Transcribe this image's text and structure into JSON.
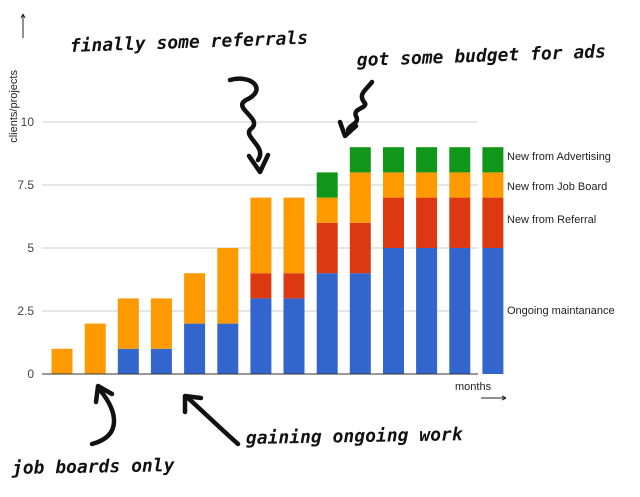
{
  "chart_data": {
    "type": "bar",
    "stacked": true,
    "categories": [
      "",
      "",
      "",
      "",
      "",
      "",
      "",
      "",
      "",
      "",
      "",
      "",
      "",
      ""
    ],
    "series": [
      {
        "name": "Ongoing maintanance",
        "color": "#3366cc",
        "values": [
          0,
          0,
          1,
          1,
          2,
          2,
          3,
          3,
          4,
          4,
          5,
          5,
          5,
          5
        ]
      },
      {
        "name": "New from Referral",
        "color": "#dc3912",
        "values": [
          0,
          0,
          0,
          0,
          0,
          0,
          1,
          1,
          2,
          2,
          2,
          2,
          2,
          2
        ]
      },
      {
        "name": "New from Job Board",
        "color": "#ff9900",
        "values": [
          1,
          2,
          2,
          2,
          2,
          3,
          3,
          3,
          1,
          2,
          1,
          1,
          1,
          1
        ]
      },
      {
        "name": "New from Advertising",
        "color": "#109618",
        "values": [
          0,
          0,
          0,
          0,
          0,
          0,
          0,
          0,
          1,
          1,
          1,
          1,
          1,
          1
        ]
      }
    ],
    "ylim": [
      0,
      10
    ],
    "yticks": [
      "0",
      "2.5",
      "5",
      "7.5",
      "10"
    ],
    "ytick_values": [
      0,
      2.5,
      5,
      7.5,
      10
    ],
    "ylabel": "clients/projects",
    "xlabel": "months",
    "grid": true,
    "legend_position": "right",
    "annotations": [
      {
        "text": "finally some referrals"
      },
      {
        "text": "got some budget for ads"
      },
      {
        "text": "gaining ongoing work"
      },
      {
        "text": "job boards only"
      }
    ]
  }
}
